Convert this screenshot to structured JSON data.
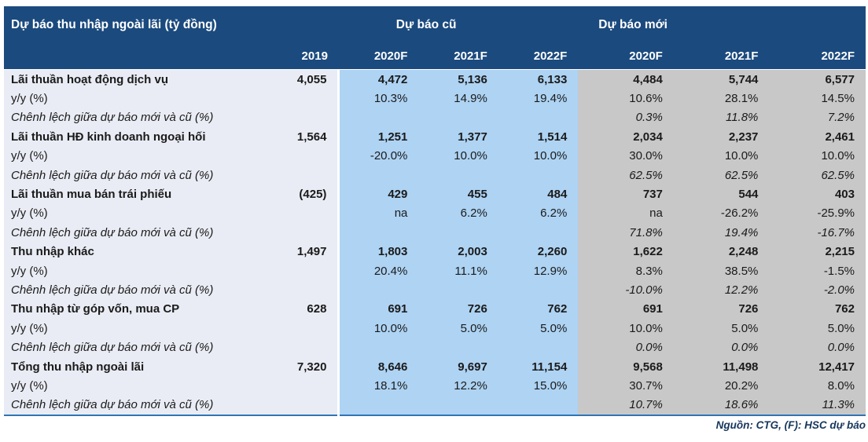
{
  "header": {
    "title": "Dự báo thu nhập ngoài lãi (tỷ đồng)",
    "group_old": "Dự báo cũ",
    "group_new": "Dự báo mới",
    "year_cols": [
      "2019",
      "2020F",
      "2021F",
      "2022F",
      "2020F",
      "2021F",
      "2022F"
    ]
  },
  "table": {
    "rows": [
      {
        "type": "main",
        "label": "Lãi thuần hoạt động dịch vụ",
        "values": [
          "4,055",
          "4,472",
          "5,136",
          "6,133",
          "4,484",
          "5,744",
          "6,577"
        ]
      },
      {
        "type": "yoy",
        "label": "y/y (%)",
        "values": [
          "",
          "10.3%",
          "14.9%",
          "19.4%",
          "10.6%",
          "28.1%",
          "14.5%"
        ]
      },
      {
        "type": "diff",
        "label": "Chênh lệch giữa dự báo mới và cũ (%)",
        "values": [
          "",
          "",
          "",
          "",
          "0.3%",
          "11.8%",
          "7.2%"
        ]
      },
      {
        "type": "main",
        "label": "Lãi thuần HĐ kinh doanh ngoại hối",
        "values": [
          "1,564",
          "1,251",
          "1,377",
          "1,514",
          "2,034",
          "2,237",
          "2,461"
        ]
      },
      {
        "type": "yoy",
        "label": "y/y (%)",
        "values": [
          "",
          "-20.0%",
          "10.0%",
          "10.0%",
          "30.0%",
          "10.0%",
          "10.0%"
        ]
      },
      {
        "type": "diff",
        "label": "Chênh lệch giữa dự báo mới và cũ (%)",
        "values": [
          "",
          "",
          "",
          "",
          "62.5%",
          "62.5%",
          "62.5%"
        ]
      },
      {
        "type": "main",
        "label": "Lãi thuần mua bán trái phiếu",
        "values": [
          "(425)",
          "429",
          "455",
          "484",
          "737",
          "544",
          "403"
        ]
      },
      {
        "type": "yoy",
        "label": "y/y (%)",
        "values": [
          "",
          "na",
          "6.2%",
          "6.2%",
          "na",
          "-26.2%",
          "-25.9%"
        ]
      },
      {
        "type": "diff",
        "label": "Chênh lệch giữa dự báo mới và cũ (%)",
        "values": [
          "",
          "",
          "",
          "",
          "71.8%",
          "19.4%",
          "-16.7%"
        ]
      },
      {
        "type": "main",
        "label": "Thu nhập khác",
        "values": [
          "1,497",
          "1,803",
          "2,003",
          "2,260",
          "1,622",
          "2,248",
          "2,215"
        ]
      },
      {
        "type": "yoy",
        "label": "y/y (%)",
        "values": [
          "",
          "20.4%",
          "11.1%",
          "12.9%",
          "8.3%",
          "38.5%",
          "-1.5%"
        ]
      },
      {
        "type": "diff",
        "label": "Chênh lệch giữa dự báo mới và cũ (%)",
        "values": [
          "",
          "",
          "",
          "",
          "-10.0%",
          "12.2%",
          "-2.0%"
        ]
      },
      {
        "type": "main",
        "label": "Thu nhập từ góp vốn, mua CP",
        "values": [
          "628",
          "691",
          "726",
          "762",
          "691",
          "726",
          "762"
        ]
      },
      {
        "type": "yoy",
        "label": "y/y (%)",
        "values": [
          "",
          "10.0%",
          "5.0%",
          "5.0%",
          "10.0%",
          "5.0%",
          "5.0%"
        ]
      },
      {
        "type": "diff",
        "label": "Chênh lệch giữa dự báo mới và cũ (%)",
        "values": [
          "",
          "",
          "",
          "",
          "0.0%",
          "0.0%",
          "0.0%"
        ]
      },
      {
        "type": "main",
        "label": "Tổng thu nhập ngoài lãi",
        "values": [
          "7,320",
          "8,646",
          "9,697",
          "11,154",
          "9,568",
          "11,498",
          "12,417"
        ]
      },
      {
        "type": "yoy",
        "label": "y/y (%)",
        "values": [
          "",
          "18.1%",
          "12.2%",
          "15.0%",
          "30.7%",
          "20.2%",
          "8.0%"
        ]
      },
      {
        "type": "diff",
        "label": "Chênh lệch giữa dự báo mới và cũ (%)",
        "values": [
          "",
          "",
          "",
          "",
          "10.7%",
          "18.6%",
          "11.3%"
        ]
      }
    ]
  },
  "footer": {
    "source": "Nguồn: CTG, (F): HSC dự báo"
  },
  "colors": {
    "header_bg": "#1b4a7e",
    "old_forecast_bg": "#aed3f3",
    "new_forecast_bg": "#c8c8c8",
    "label_col_bg": "#e9ecf4",
    "bottom_rule": "#2e75b6",
    "header_text": "#ffffff",
    "body_text": "#1a1a1a"
  }
}
